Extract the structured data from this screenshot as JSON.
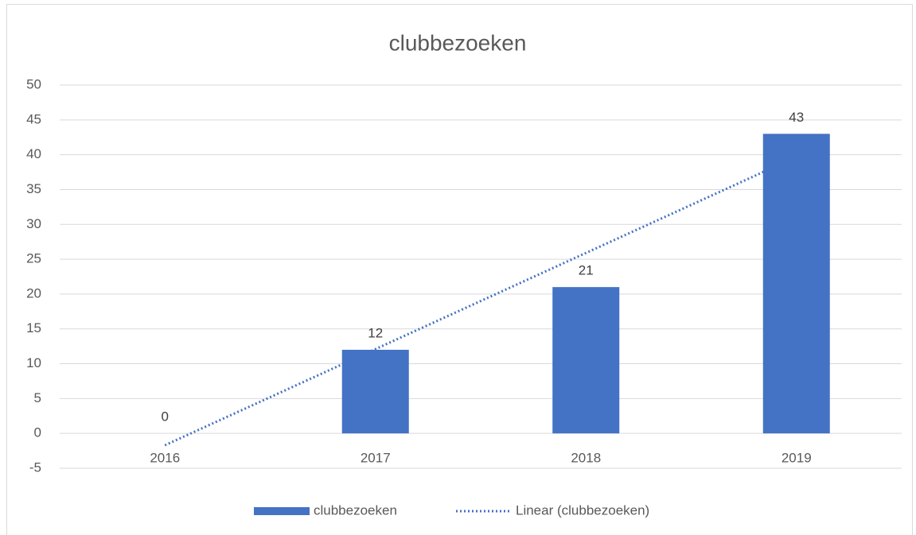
{
  "chart_data": {
    "type": "bar",
    "title": "clubbezoeken",
    "categories": [
      "2016",
      "2017",
      "2018",
      "2019"
    ],
    "series": [
      {
        "name": "clubbezoeken",
        "color": "#4472c4",
        "values": [
          0,
          12,
          21,
          43
        ]
      }
    ],
    "trendline": {
      "name": "Linear (clubbezoeken)",
      "color": "#4472c4",
      "kind": "linear"
    },
    "ylim": [
      -5,
      50
    ],
    "yticks": [
      -5,
      0,
      5,
      10,
      15,
      20,
      25,
      30,
      35,
      40,
      45,
      50
    ],
    "grid": true,
    "data_labels": true,
    "legend": "bottom"
  }
}
